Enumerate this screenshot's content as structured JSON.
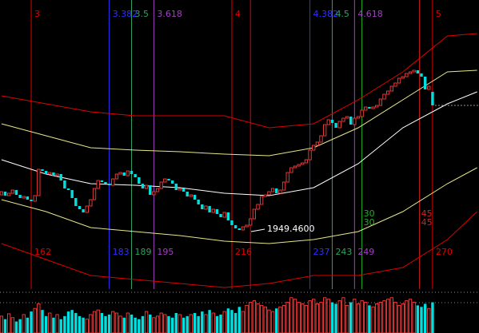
{
  "chart_data": {
    "type": "candlestick",
    "xlim": [
      153.6,
      282.5
    ],
    "ylim": [
      1878,
      2240
    ],
    "vlim": [
      0,
      52
    ],
    "up_color": "#ff3c3c",
    "down_color": "#00e0e0",
    "x": [
      154,
      155,
      156,
      157,
      158,
      159,
      160,
      161,
      162,
      163,
      164,
      165,
      166,
      167,
      168,
      169,
      170,
      171,
      172,
      173,
      174,
      175,
      176,
      177,
      178,
      179,
      180,
      181,
      182,
      183,
      184,
      185,
      186,
      187,
      188,
      189,
      190,
      191,
      192,
      193,
      194,
      195,
      196,
      197,
      198,
      199,
      200,
      201,
      202,
      203,
      204,
      205,
      206,
      207,
      208,
      209,
      210,
      211,
      212,
      213,
      214,
      215,
      216,
      217,
      218,
      219,
      220,
      221,
      222,
      223,
      224,
      225,
      226,
      227,
      228,
      229,
      230,
      231,
      232,
      233,
      234,
      235,
      236,
      237,
      238,
      239,
      240,
      241,
      242,
      243,
      244,
      245,
      246,
      247,
      248,
      249,
      250,
      251,
      252,
      253,
      254,
      255,
      256,
      257,
      258,
      259,
      260,
      261,
      262,
      263,
      264,
      265,
      266,
      267,
      268,
      269,
      270
    ],
    "open": [
      1996,
      2000,
      1995,
      1998,
      2002,
      1996,
      1992,
      1994,
      1990,
      1988,
      1995,
      2028,
      2026,
      2022,
      2024,
      2020,
      2022,
      2014,
      2004,
      2002,
      1992,
      1982,
      1978,
      1974,
      1982,
      1990,
      2004,
      2014,
      2012,
      2010,
      2008,
      2016,
      2022,
      2024,
      2020,
      2026,
      2022,
      2018,
      2010,
      2004,
      2008,
      1996,
      2000,
      2004,
      2012,
      2016,
      2014,
      2010,
      2002,
      2004,
      2000,
      1994,
      1996,
      1990,
      1984,
      1978,
      1982,
      1974,
      1978,
      1972,
      1968,
      1974,
      1964,
      1958,
      1954,
      1952,
      1956,
      1958,
      1966,
      1978,
      1984,
      1994,
      1996,
      2000,
      2004,
      1998,
      2002,
      2012,
      2024,
      2030,
      2032,
      2034,
      2036,
      2040,
      2052,
      2058,
      2062,
      2070,
      2084,
      2090,
      2086,
      2080,
      2088,
      2092,
      2094,
      2084,
      2092,
      2094,
      2102,
      2106,
      2104,
      2106,
      2108,
      2116,
      2122,
      2126,
      2132,
      2136,
      2142,
      2144,
      2148,
      2150,
      2152,
      2148,
      2144,
      2128,
      2125
    ],
    "close": [
      2000,
      1995,
      1998,
      2002,
      1996,
      1992,
      1994,
      1990,
      1988,
      1995,
      2028,
      2026,
      2022,
      2024,
      2020,
      2022,
      2014,
      2004,
      2002,
      1992,
      1982,
      1978,
      1974,
      1982,
      1990,
      2004,
      2014,
      2012,
      2010,
      2008,
      2016,
      2022,
      2024,
      2020,
      2026,
      2022,
      2018,
      2010,
      2004,
      2008,
      1996,
      2000,
      2004,
      2012,
      2016,
      2014,
      2010,
      2002,
      2004,
      2000,
      1994,
      1996,
      1990,
      1984,
      1978,
      1982,
      1974,
      1978,
      1972,
      1968,
      1974,
      1964,
      1958,
      1954,
      1952,
      1956,
      1958,
      1966,
      1978,
      1984,
      1994,
      1996,
      2000,
      2004,
      1998,
      2002,
      2012,
      2024,
      2030,
      2032,
      2034,
      2036,
      2040,
      2052,
      2058,
      2062,
      2070,
      2084,
      2090,
      2086,
      2080,
      2088,
      2092,
      2094,
      2084,
      2092,
      2094,
      2102,
      2106,
      2104,
      2106,
      2108,
      2116,
      2122,
      2126,
      2132,
      2136,
      2142,
      2144,
      2148,
      2150,
      2152,
      2148,
      2144,
      2128,
      2132,
      2108
    ],
    "volume": [
      22,
      18,
      25,
      20,
      15,
      18,
      24,
      20,
      28,
      32,
      38,
      30,
      22,
      26,
      20,
      24,
      18,
      22,
      28,
      30,
      26,
      22,
      20,
      18,
      24,
      28,
      30,
      26,
      22,
      24,
      28,
      26,
      22,
      20,
      26,
      24,
      20,
      18,
      22,
      28,
      24,
      20,
      22,
      26,
      24,
      22,
      20,
      26,
      24,
      20,
      22,
      24,
      26,
      22,
      28,
      24,
      30,
      26,
      22,
      24,
      28,
      32,
      30,
      26,
      34,
      28,
      36,
      40,
      42,
      38,
      36,
      34,
      30,
      28,
      32,
      34,
      36,
      40,
      46,
      44,
      40,
      38,
      36,
      42,
      44,
      38,
      40,
      46,
      44,
      40,
      38,
      42,
      46,
      36,
      40,
      44,
      38,
      42,
      40,
      36,
      34,
      38,
      40,
      42,
      44,
      46,
      40,
      36,
      38,
      42,
      44,
      40,
      36,
      34,
      38,
      32,
      40
    ],
    "line_x": [
      154,
      166,
      178,
      190,
      202,
      214,
      226,
      238,
      250,
      262,
      274,
      282
    ],
    "lines": [
      {
        "color": "#e00000",
        "values": [
          2120,
          2110,
          2100,
          2095,
          2095,
          2095,
          2080,
          2085,
          2115,
          2150,
          2195,
          2198
        ]
      },
      {
        "color": "#e6e68c",
        "values": [
          2085,
          2070,
          2055,
          2052,
          2050,
          2047,
          2045,
          2055,
          2080,
          2115,
          2150,
          2152
        ]
      },
      {
        "color": "#ffffff",
        "values": [
          2040,
          2022,
          2010,
          2008,
          2005,
          1998,
          1995,
          2005,
          2035,
          2080,
          2110,
          2125
        ]
      },
      {
        "color": "#e6e68c",
        "values": [
          1990,
          1975,
          1955,
          1950,
          1945,
          1938,
          1935,
          1940,
          1950,
          1975,
          2010,
          2030
        ]
      },
      {
        "color": "#e00000",
        "values": [
          1935,
          1915,
          1895,
          1890,
          1885,
          1880,
          1885,
          1895,
          1895,
          1905,
          1940,
          1975
        ]
      }
    ],
    "vlines": [
      {
        "x": 162,
        "color": "#e00000",
        "labels": [
          "3",
          "162"
        ]
      },
      {
        "x": 183,
        "color": "#3030ff",
        "labels": [
          "3.382",
          "183"
        ]
      },
      {
        "x": 189,
        "color": "#30a060",
        "labels": [
          "3.5",
          "189"
        ]
      },
      {
        "x": 195,
        "color": "#a040c0",
        "labels": [
          "3.618",
          "195"
        ]
      },
      {
        "x": 216,
        "color": "#e00000",
        "labels": [
          "4",
          "216"
        ]
      },
      {
        "x": 221,
        "color": "#e00000",
        "labels": []
      },
      {
        "x": 237,
        "color": "#3030ff",
        "labels": [
          "4.382",
          "237"
        ]
      },
      {
        "x": 243,
        "color": "#30a060",
        "labels": [
          "4.5",
          "243"
        ]
      },
      {
        "x": 249,
        "color": "#a040c0",
        "labels": [
          "4.618",
          "249"
        ]
      },
      {
        "x": 251,
        "color": "#20b020",
        "labels": []
      },
      {
        "x": 266.5,
        "color": "#d02020",
        "labels": []
      },
      {
        "x": 270,
        "color": "#e00000",
        "labels": [
          "5",
          "270"
        ]
      }
    ],
    "period_labels": [
      {
        "color": "#20b020",
        "labels": [
          "30",
          "30"
        ]
      },
      {
        "color": "#d02020",
        "labels": [
          "45",
          "45"
        ]
      }
    ],
    "annotation": "1949.4600"
  }
}
